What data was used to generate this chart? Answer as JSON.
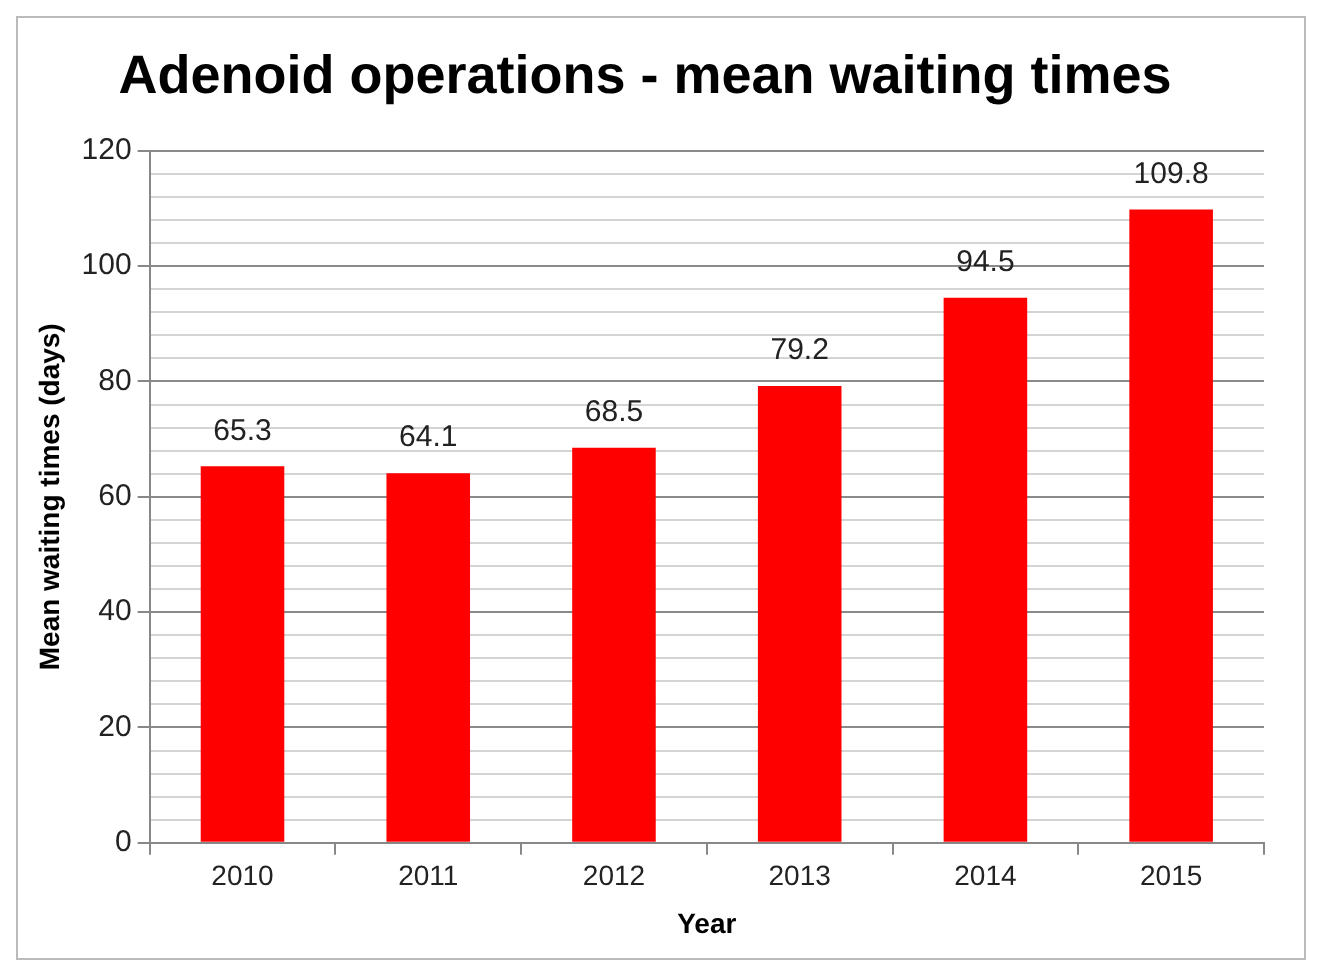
{
  "chart_data": {
    "type": "bar",
    "title": "Adenoid operations - mean waiting times",
    "xlabel": "Year",
    "ylabel": "Mean waiting times (days)",
    "categories": [
      "2010",
      "2011",
      "2012",
      "2013",
      "2014",
      "2015"
    ],
    "values": [
      65.3,
      64.1,
      68.5,
      79.2,
      94.5,
      109.8
    ],
    "color": "#ff0000",
    "ylim": [
      0,
      120
    ],
    "yticks": [
      0,
      {
        "value": 4,
        "label": null
      },
      {
        "value": 8,
        "label": null
      },
      {
        "value": 12,
        "label": null
      },
      {
        "value": 16,
        "label": null
      },
      20,
      {
        "value": 24,
        "label": null
      },
      {
        "value": 28,
        "label": null
      },
      {
        "value": 32,
        "label": null
      },
      {
        "value": 36,
        "label": null
      },
      40,
      {
        "value": 44,
        "label": null
      },
      {
        "value": 48,
        "label": null
      },
      {
        "value": 52,
        "label": null
      },
      {
        "value": 56,
        "label": null
      },
      60,
      {
        "value": 64,
        "label": null
      },
      {
        "value": 68,
        "label": null
      },
      {
        "value": 72,
        "label": null
      },
      {
        "value": 76,
        "label": null
      },
      80,
      {
        "value": 84,
        "label": null
      },
      {
        "value": 88,
        "label": null
      },
      {
        "value": 92,
        "label": null
      },
      {
        "value": 96,
        "label": null
      },
      100,
      {
        "value": 104,
        "label": null
      },
      {
        "value": 108,
        "label": null
      },
      {
        "value": 112,
        "label": null
      },
      {
        "value": 116,
        "label": null
      },
      120
    ],
    "grid": true,
    "data_labels": true,
    "legend": false
  }
}
